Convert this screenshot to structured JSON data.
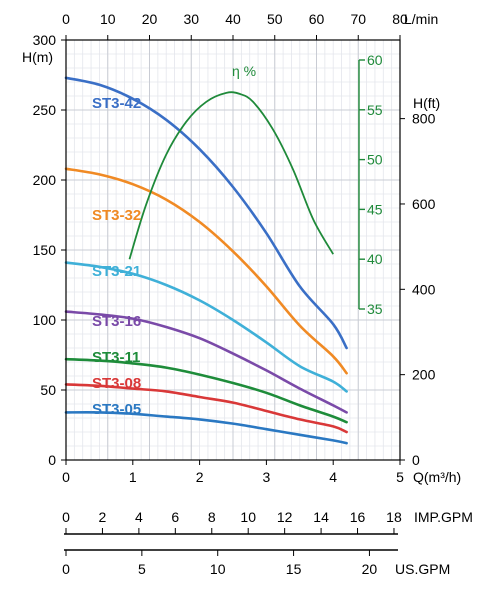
{
  "chart_data": {
    "type": "line",
    "title": "",
    "axes": {
      "bottom": {
        "label": "Q(m³/h)",
        "range": [
          0,
          5
        ],
        "ticks": [
          0,
          1,
          2,
          3,
          4,
          5
        ]
      },
      "top": {
        "label": "L/min",
        "range": [
          0,
          80
        ],
        "ticks": [
          0,
          10,
          20,
          30,
          40,
          50,
          60,
          70,
          80
        ]
      },
      "left": {
        "label": "H(m)",
        "range": [
          0,
          300
        ],
        "ticks": [
          0,
          50,
          100,
          150,
          200,
          250,
          300
        ]
      },
      "right": {
        "label": "H(ft)",
        "ticks": [
          0,
          200,
          400,
          600,
          800
        ]
      },
      "efficiency": {
        "label": "η %",
        "range": [
          35,
          60
        ],
        "ticks": [
          35,
          40,
          45,
          50,
          55,
          60
        ]
      },
      "imp_gpm": {
        "label": "IMP.GPM",
        "ticks": [
          0,
          2,
          4,
          6,
          8,
          10,
          12,
          14,
          16,
          18
        ]
      },
      "us_gpm": {
        "label": "US.GPM",
        "ticks": [
          0,
          5,
          10,
          15,
          20
        ]
      }
    },
    "grid": true,
    "series": [
      {
        "name": "ST3-42",
        "color": "#3a6fc6",
        "x": [
          0,
          0.5,
          1,
          1.5,
          2,
          2.5,
          3,
          3.5,
          4,
          4.2
        ],
        "y": [
          273,
          268,
          258,
          243,
          222,
          195,
          162,
          124,
          97,
          80
        ]
      },
      {
        "name": "ST3-32",
        "color": "#f08a24",
        "x": [
          0,
          0.5,
          1,
          1.5,
          2,
          2.5,
          3,
          3.5,
          4,
          4.2
        ],
        "y": [
          208,
          204,
          197,
          186,
          170,
          149,
          124,
          96,
          74,
          62
        ]
      },
      {
        "name": "ST3-21",
        "color": "#3fb0d8",
        "x": [
          0,
          0.5,
          1,
          1.5,
          2,
          2.5,
          3,
          3.5,
          4,
          4.2
        ],
        "y": [
          141,
          138,
          133,
          125,
          114,
          100,
          84,
          67,
          56,
          49
        ]
      },
      {
        "name": "ST3-16",
        "color": "#7a4aa8",
        "x": [
          0,
          0.5,
          1,
          1.5,
          2,
          2.5,
          3,
          3.5,
          4,
          4.2
        ],
        "y": [
          106,
          104,
          101,
          95,
          87,
          76,
          64,
          51,
          39,
          34
        ]
      },
      {
        "name": "ST3-11",
        "color": "#1e8c3a",
        "x": [
          0,
          0.5,
          1,
          1.5,
          2,
          2.5,
          3,
          3.5,
          4,
          4.2
        ],
        "y": [
          72,
          71,
          69,
          66,
          61,
          55,
          48,
          39,
          31,
          27
        ]
      },
      {
        "name": "ST3-08",
        "color": "#d93838",
        "x": [
          0,
          0.5,
          1,
          1.5,
          2,
          2.5,
          3,
          3.5,
          4,
          4.2
        ],
        "y": [
          54,
          53,
          51,
          49,
          45,
          41,
          35,
          29,
          24,
          20
        ]
      },
      {
        "name": "ST3-05",
        "color": "#2a78c2",
        "x": [
          0,
          0.5,
          1,
          1.5,
          2,
          2.5,
          3,
          3.5,
          4,
          4.2
        ],
        "y": [
          34,
          34,
          33,
          31,
          29,
          26,
          22,
          18,
          14,
          12
        ]
      }
    ],
    "efficiency_curve": {
      "name": "η %",
      "color": "#1f8a3a",
      "x": [
        0.95,
        1.2,
        1.5,
        1.8,
        2.1,
        2.4,
        2.6,
        2.8,
        3.1,
        3.4,
        3.7,
        4.0
      ],
      "y": [
        40,
        45.5,
        50.5,
        53.8,
        55.8,
        56.7,
        56.6,
        55.8,
        53,
        49,
        44,
        40.5
      ]
    }
  }
}
